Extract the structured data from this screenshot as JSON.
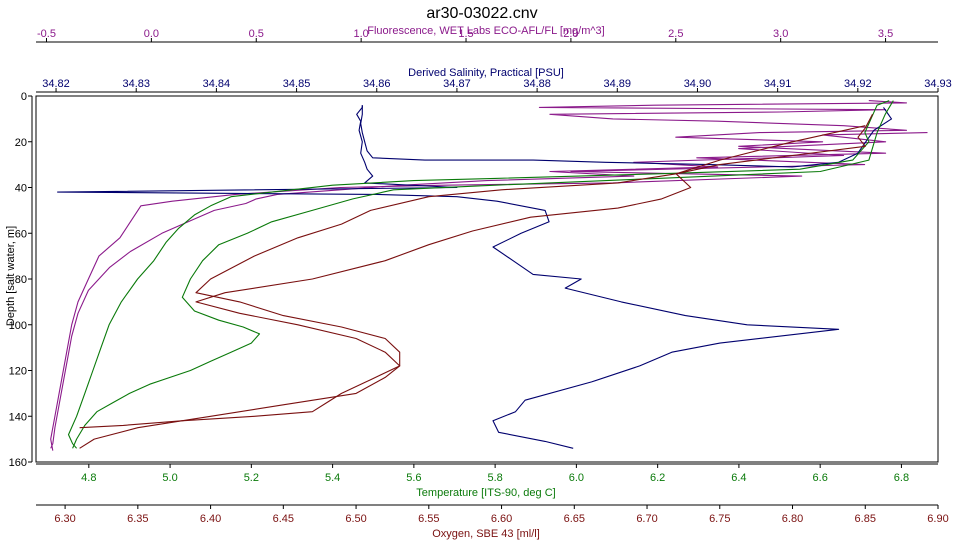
{
  "chart_data": {
    "type": "line",
    "title": "ar30-03022.cnv",
    "grid": false,
    "colors": {
      "fluorescence": "#8b1a8b",
      "salinity": "#00006e",
      "temperature": "#0a7a0a",
      "oxygen": "#7a1010"
    },
    "y_axis": {
      "label": "Depth [salt water, m]",
      "range": [
        0,
        160
      ],
      "ticks": [
        0,
        20,
        40,
        60,
        80,
        100,
        120,
        140,
        160
      ],
      "ticks_display": [
        "0",
        "20",
        "40",
        "60",
        "80",
        "100",
        "120",
        "140",
        "160"
      ],
      "inverted": true
    },
    "x_axes": [
      {
        "key": "fluorescence",
        "label": "Fluorescence, WET Labs ECO-AFL/FL [mg/m^3]",
        "position": "top-outer",
        "range": [
          -0.55,
          3.75
        ],
        "ticks": [
          -0.5,
          0.0,
          0.5,
          1.0,
          1.5,
          2.0,
          2.5,
          3.0,
          3.5
        ],
        "ticks_display": [
          "-0.5",
          "0.0",
          "0.5",
          "1.0",
          "1.5",
          "2.0",
          "2.5",
          "3.0",
          "3.5"
        ]
      },
      {
        "key": "salinity",
        "label": "Derived Salinity, Practical [PSU]",
        "position": "top-inner",
        "range": [
          34.8175,
          34.93
        ],
        "ticks": [
          34.82,
          34.83,
          34.84,
          34.85,
          34.86,
          34.87,
          34.88,
          34.89,
          34.9,
          34.91,
          34.92,
          34.93
        ],
        "ticks_display": [
          "34.82",
          "34.83",
          "34.84",
          "34.85",
          "34.86",
          "34.87",
          "34.88",
          "34.89",
          "34.90",
          "34.91",
          "34.92",
          "34.93"
        ]
      },
      {
        "key": "temperature",
        "label": "Temperature [ITS-90, deg C]",
        "position": "bottom-inner",
        "range": [
          4.67,
          6.89
        ],
        "ticks": [
          4.8,
          5.0,
          5.2,
          5.4,
          5.6,
          5.8,
          6.0,
          6.2,
          6.4,
          6.6,
          6.8
        ],
        "ticks_display": [
          "4.8",
          "5.0",
          "5.2",
          "5.4",
          "5.6",
          "5.8",
          "6.0",
          "6.2",
          "6.4",
          "6.6",
          "6.8"
        ]
      },
      {
        "key": "oxygen",
        "label": "Oxygen, SBE 43 [ml/l]",
        "position": "bottom-outer",
        "range": [
          6.28,
          6.9
        ],
        "ticks": [
          6.3,
          6.35,
          6.4,
          6.45,
          6.5,
          6.55,
          6.6,
          6.65,
          6.7,
          6.75,
          6.8,
          6.85,
          6.9
        ],
        "ticks_display": [
          "6.30",
          "6.35",
          "6.40",
          "6.45",
          "6.50",
          "6.55",
          "6.60",
          "6.65",
          "6.70",
          "6.75",
          "6.80",
          "6.85",
          "6.90"
        ]
      }
    ],
    "series": [
      {
        "axis": "fluorescence",
        "traces": [
          [
            [
              3.42,
              2
            ],
            [
              3.6,
              3
            ],
            [
              2.4,
              4
            ],
            [
              1.85,
              5
            ],
            [
              3.5,
              6
            ],
            [
              3.0,
              7
            ],
            [
              1.9,
              8
            ],
            [
              2.2,
              10
            ],
            [
              2.7,
              11
            ],
            [
              3.3,
              13
            ],
            [
              3.6,
              15
            ],
            [
              2.9,
              16
            ],
            [
              2.5,
              18
            ],
            [
              3.2,
              20
            ],
            [
              2.8,
              22
            ],
            [
              3.5,
              25
            ],
            [
              2.6,
              27
            ],
            [
              3.4,
              30
            ],
            [
              2.0,
              33
            ],
            [
              3.1,
              35
            ],
            [
              2.2,
              38
            ],
            [
              1.4,
              39
            ],
            [
              0.9,
              40
            ],
            [
              0.4,
              43
            ],
            [
              0.1,
              46
            ],
            [
              -0.05,
              48
            ],
            [
              -0.1,
              55
            ],
            [
              -0.15,
              62
            ],
            [
              -0.25,
              70
            ],
            [
              -0.3,
              80
            ],
            [
              -0.35,
              90
            ],
            [
              -0.38,
              100
            ],
            [
              -0.4,
              110
            ],
            [
              -0.42,
              120
            ],
            [
              -0.44,
              130
            ],
            [
              -0.46,
              140
            ],
            [
              -0.48,
              150
            ],
            [
              -0.47,
              155
            ]
          ],
          [
            [
              3.7,
              16
            ],
            [
              3.2,
              17
            ],
            [
              3.5,
              20
            ],
            [
              2.8,
              23
            ],
            [
              3.3,
              26
            ],
            [
              2.3,
              29
            ],
            [
              2.7,
              31
            ],
            [
              1.9,
              33
            ],
            [
              2.3,
              35
            ],
            [
              1.6,
              37
            ],
            [
              1.2,
              39
            ],
            [
              0.9,
              41
            ],
            [
              0.6,
              43
            ],
            [
              0.5,
              45
            ],
            [
              0.45,
              47
            ],
            [
              0.3,
              50
            ],
            [
              0.2,
              54
            ],
            [
              0.05,
              60
            ],
            [
              -0.1,
              68
            ],
            [
              -0.2,
              75
            ],
            [
              -0.3,
              85
            ],
            [
              -0.35,
              95
            ],
            [
              -0.38,
              105
            ],
            [
              -0.4,
              115
            ],
            [
              -0.42,
              125
            ],
            [
              -0.44,
              135
            ],
            [
              -0.46,
              145
            ],
            [
              -0.47,
              152
            ],
            [
              -0.48,
              154
            ]
          ]
        ]
      },
      {
        "axis": "salinity",
        "traces": [
          [
            [
              34.8582,
              4
            ],
            [
              34.8582,
              5
            ],
            [
              34.8575,
              8
            ],
            [
              34.858,
              11
            ],
            [
              34.8578,
              15
            ],
            [
              34.8582,
              20
            ],
            [
              34.858,
              25
            ],
            [
              34.8585,
              29
            ],
            [
              34.8588,
              32
            ],
            [
              34.8595,
              35
            ],
            [
              34.8585,
              38
            ],
            [
              34.87,
              40
            ],
            [
              34.8202,
              42
            ],
            [
              34.86,
              43
            ],
            [
              34.87,
              44
            ],
            [
              34.875,
              46
            ],
            [
              34.881,
              50
            ],
            [
              34.8815,
              55
            ],
            [
              34.878,
              60
            ],
            [
              34.8745,
              66
            ],
            [
              34.877,
              72
            ],
            [
              34.8795,
              78
            ],
            [
              34.8855,
              80
            ],
            [
              34.8835,
              84
            ],
            [
              34.8905,
              90
            ],
            [
              34.8985,
              96
            ],
            [
              34.9062,
              100
            ],
            [
              34.9176,
              102
            ],
            [
              34.9028,
              108
            ],
            [
              34.8968,
              112
            ],
            [
              34.8928,
              118
            ],
            [
              34.8868,
              125
            ],
            [
              34.8785,
              133
            ],
            [
              34.8773,
              138
            ],
            [
              34.8745,
              142
            ],
            [
              34.8752,
              147
            ],
            [
              34.881,
              151
            ],
            [
              34.8845,
              154
            ]
          ],
          [
            [
              34.8582,
              4
            ],
            [
              34.8582,
              8
            ],
            [
              34.858,
              12
            ],
            [
              34.8582,
              16
            ],
            [
              34.8585,
              20
            ],
            [
              34.8588,
              24
            ],
            [
              34.8595,
              27
            ],
            [
              34.866,
              28
            ],
            [
              34.8795,
              28
            ],
            [
              34.8885,
              29
            ],
            [
              34.9015,
              30
            ],
            [
              34.9118,
              31
            ],
            [
              34.9176,
              29
            ],
            [
              34.92,
              25
            ],
            [
              34.921,
              20
            ],
            [
              34.922,
              15
            ],
            [
              34.9242,
              10
            ],
            [
              34.9232,
              5
            ]
          ]
        ]
      },
      {
        "axis": "temperature",
        "traces": [
          [
            [
              6.77,
              2
            ],
            [
              6.74,
              4
            ],
            [
              6.73,
              8
            ],
            [
              6.72,
              12
            ],
            [
              6.71,
              16
            ],
            [
              6.72,
              20
            ],
            [
              6.7,
              24
            ],
            [
              6.68,
              28
            ],
            [
              6.55,
              32
            ],
            [
              6.2,
              34
            ],
            [
              5.8,
              36
            ],
            [
              5.6,
              37
            ],
            [
              5.4,
              39
            ],
            [
              5.3,
              41
            ],
            [
              5.15,
              44
            ],
            [
              5.1,
              48
            ],
            [
              5.06,
              52
            ],
            [
              5.02,
              58
            ],
            [
              4.99,
              64
            ],
            [
              4.96,
              72
            ],
            [
              4.92,
              80
            ],
            [
              4.88,
              90
            ],
            [
              4.85,
              100
            ],
            [
              4.83,
              110
            ],
            [
              4.81,
              120
            ],
            [
              4.79,
              130
            ],
            [
              4.77,
              140
            ],
            [
              4.75,
              148
            ],
            [
              4.76,
              152
            ],
            [
              4.77,
              154
            ]
          ],
          [
            [
              6.78,
              2
            ],
            [
              6.76,
              8
            ],
            [
              6.74,
              16
            ],
            [
              6.73,
              22
            ],
            [
              6.72,
              28
            ],
            [
              6.6,
              33
            ],
            [
              6.2,
              36
            ],
            [
              5.8,
              39
            ],
            [
              5.55,
              41
            ],
            [
              5.45,
              45
            ],
            [
              5.35,
              50
            ],
            [
              5.25,
              55
            ],
            [
              5.19,
              60
            ],
            [
              5.12,
              65
            ],
            [
              5.08,
              72
            ],
            [
              5.05,
              80
            ],
            [
              5.03,
              88
            ],
            [
              5.06,
              94
            ],
            [
              5.12,
              98
            ],
            [
              5.18,
              101
            ],
            [
              5.22,
              104
            ],
            [
              5.2,
              108
            ],
            [
              5.15,
              112
            ],
            [
              5.1,
              116
            ],
            [
              5.05,
              120
            ],
            [
              4.95,
              126
            ],
            [
              4.9,
              130
            ],
            [
              4.86,
              134
            ],
            [
              4.82,
              138
            ],
            [
              4.79,
              144
            ],
            [
              4.77,
              150
            ],
            [
              4.76,
              154
            ]
          ]
        ]
      },
      {
        "axis": "oxygen",
        "traces": [
          [
            [
              6.855,
              8
            ],
            [
              6.85,
              14
            ],
            [
              6.845,
              18
            ],
            [
              6.85,
              22
            ],
            [
              6.8,
              26
            ],
            [
              6.75,
              30
            ],
            [
              6.72,
              34
            ],
            [
              6.68,
              38
            ],
            [
              6.6,
              41
            ],
            [
              6.55,
              44
            ],
            [
              6.51,
              50
            ],
            [
              6.49,
              56
            ],
            [
              6.46,
              62
            ],
            [
              6.43,
              70
            ],
            [
              6.4,
              80
            ],
            [
              6.39,
              86
            ],
            [
              6.42,
              90
            ],
            [
              6.45,
              96
            ],
            [
              6.49,
              101
            ],
            [
              6.52,
              106
            ],
            [
              6.53,
              112
            ],
            [
              6.53,
              118
            ],
            [
              6.52,
              123
            ],
            [
              6.5,
              130
            ],
            [
              6.45,
              135
            ],
            [
              6.4,
              140
            ],
            [
              6.35,
              145
            ],
            [
              6.32,
              150
            ],
            [
              6.31,
              154
            ]
          ],
          [
            [
              6.85,
              13
            ],
            [
              6.8,
              20
            ],
            [
              6.75,
              28
            ],
            [
              6.72,
              34
            ],
            [
              6.73,
              40
            ],
            [
              6.71,
              45
            ],
            [
              6.68,
              49
            ],
            [
              6.62,
              53
            ],
            [
              6.58,
              59
            ],
            [
              6.55,
              65
            ],
            [
              6.52,
              72
            ],
            [
              6.47,
              80
            ],
            [
              6.41,
              86
            ],
            [
              6.39,
              90
            ],
            [
              6.42,
              95
            ],
            [
              6.46,
              100
            ],
            [
              6.5,
              106
            ],
            [
              6.52,
              112
            ],
            [
              6.53,
              118
            ],
            [
              6.51,
              124
            ],
            [
              6.49,
              130
            ],
            [
              6.48,
              134
            ],
            [
              6.47,
              138
            ],
            [
              6.43,
              140
            ],
            [
              6.38,
              142
            ],
            [
              6.34,
              144
            ],
            [
              6.31,
              145
            ]
          ]
        ]
      }
    ]
  }
}
